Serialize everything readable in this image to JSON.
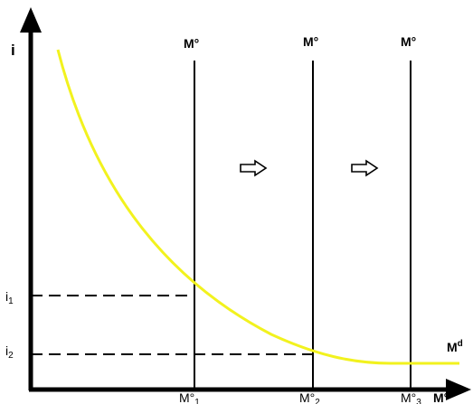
{
  "axes": {
    "y_label": "i",
    "x_label": "M°"
  },
  "supply_curves": [
    {
      "top_label": "M°",
      "base": "M°",
      "sub": "1"
    },
    {
      "top_label": "M°",
      "base": "M°",
      "sub": "2"
    },
    {
      "top_label": "M°",
      "base": "M°",
      "sub": "3"
    }
  ],
  "demand_curve": {
    "label": "M",
    "label_sup": "d",
    "color": "#f2f21e"
  },
  "interest_rates": [
    {
      "base": "i",
      "sub": "1"
    },
    {
      "base": "i",
      "sub": "2"
    }
  ],
  "shift_arrows": [
    {
      "icon": "hollow-right-arrow"
    },
    {
      "icon": "hollow-right-arrow"
    }
  ],
  "colors": {
    "axis": "#000000",
    "demand": "#f2f21e",
    "background": "#ffffff"
  }
}
